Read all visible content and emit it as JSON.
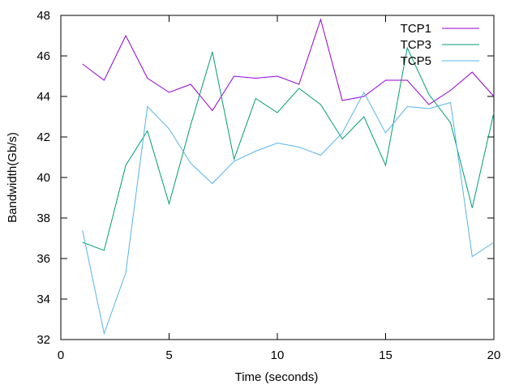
{
  "chart_data": {
    "type": "line",
    "title": "",
    "xlabel": "Time (seconds)",
    "ylabel": "Bandwidth(Gb/s)",
    "xlim": [
      0,
      20
    ],
    "ylim": [
      32,
      48
    ],
    "xticks": [
      0,
      5,
      10,
      15,
      20
    ],
    "yticks": [
      32,
      34,
      36,
      38,
      40,
      42,
      44,
      46,
      48
    ],
    "grid": false,
    "legend_position": "top-right",
    "x": [
      1,
      2,
      3,
      4,
      5,
      6,
      7,
      8,
      9,
      10,
      11,
      12,
      13,
      14,
      15,
      16,
      17,
      18,
      19,
      20
    ],
    "series": [
      {
        "name": "TCP1",
        "color": "#9400d3",
        "values": [
          45.6,
          44.8,
          47.0,
          44.9,
          44.2,
          44.6,
          43.3,
          45.0,
          44.9,
          45.0,
          44.6,
          47.8,
          43.8,
          44.0,
          44.8,
          44.8,
          43.6,
          44.3,
          45.2,
          44.0
        ]
      },
      {
        "name": "TCP3",
        "color": "#009e73",
        "values": [
          36.8,
          36.4,
          40.6,
          42.3,
          38.7,
          42.6,
          46.2,
          40.9,
          43.9,
          43.2,
          44.4,
          43.6,
          41.9,
          43.0,
          40.6,
          46.4,
          44.1,
          42.7,
          38.5,
          43.2
        ]
      },
      {
        "name": "TCP5",
        "color": "#56b4e9",
        "values": [
          37.4,
          32.3,
          35.3,
          43.5,
          42.4,
          40.7,
          39.7,
          40.8,
          41.3,
          41.7,
          41.5,
          41.1,
          42.2,
          44.2,
          42.2,
          43.5,
          43.4,
          43.7,
          36.1,
          36.8
        ]
      }
    ]
  }
}
